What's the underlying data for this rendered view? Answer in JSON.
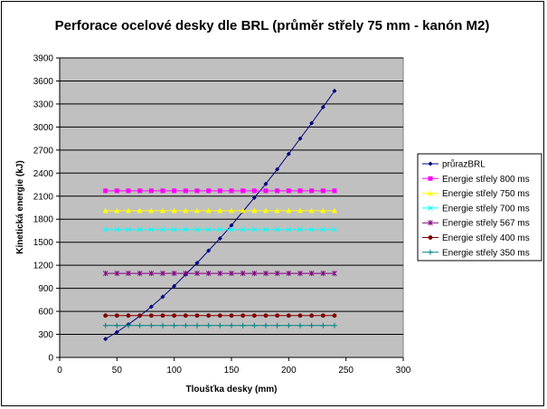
{
  "chart_data": {
    "type": "line",
    "title": "Perforace ocelové desky dle BRL (průměr střely 75 mm - kanón M2)",
    "xlabel": "Tloušťka desky (mm)",
    "ylabel": "Kinetická energie (kJ)",
    "xlim": [
      0,
      300
    ],
    "ylim": [
      0,
      3900
    ],
    "x_ticks": [
      "0",
      "50",
      "100",
      "150",
      "200",
      "250",
      "300"
    ],
    "y_ticks": [
      "0",
      "300",
      "600",
      "900",
      "1200",
      "1500",
      "1800",
      "2100",
      "2400",
      "2700",
      "3000",
      "3300",
      "3600",
      "3900"
    ],
    "grid": "horizontal major gridlines",
    "plot_background": "#c0c0c0",
    "legend_position": "right",
    "x": [
      40,
      50,
      60,
      70,
      80,
      90,
      100,
      110,
      120,
      130,
      140,
      150,
      160,
      170,
      180,
      190,
      200,
      210,
      220,
      230,
      240
    ],
    "series": [
      {
        "name": "průrazBRL",
        "color": "#000080",
        "marker": "diamond",
        "values": [
          240,
          330,
          430,
          540,
          660,
          790,
          930,
          1080,
          1230,
          1390,
          1550,
          1720,
          1900,
          2080,
          2260,
          2450,
          2650,
          2850,
          3050,
          3260,
          3470
        ]
      },
      {
        "name": "Energie střely 800 ms",
        "color": "#ff00ff",
        "marker": "square",
        "values": [
          2170,
          2170,
          2170,
          2170,
          2170,
          2170,
          2170,
          2170,
          2170,
          2170,
          2170,
          2170,
          2170,
          2170,
          2170,
          2170,
          2170,
          2170,
          2170,
          2170,
          2170
        ]
      },
      {
        "name": "Energie střely 750 ms",
        "color": "#ffff00",
        "marker": "triangle",
        "values": [
          1910,
          1910,
          1910,
          1910,
          1910,
          1910,
          1910,
          1910,
          1910,
          1910,
          1910,
          1910,
          1910,
          1910,
          1910,
          1910,
          1910,
          1910,
          1910,
          1910,
          1910
        ]
      },
      {
        "name": "Energie střely 700 ms",
        "color": "#00ffff",
        "marker": "x",
        "values": [
          1665,
          1665,
          1665,
          1665,
          1665,
          1665,
          1665,
          1665,
          1665,
          1665,
          1665,
          1665,
          1665,
          1665,
          1665,
          1665,
          1665,
          1665,
          1665,
          1665,
          1665
        ]
      },
      {
        "name": "Energie střely 567 ms",
        "color": "#800080",
        "marker": "star",
        "values": [
          1095,
          1095,
          1095,
          1095,
          1095,
          1095,
          1095,
          1095,
          1095,
          1095,
          1095,
          1095,
          1095,
          1095,
          1095,
          1095,
          1095,
          1095,
          1095,
          1095,
          1095
        ]
      },
      {
        "name": "Energie střely 400 ms",
        "color": "#800000",
        "marker": "circle",
        "values": [
          545,
          545,
          545,
          545,
          545,
          545,
          545,
          545,
          545,
          545,
          545,
          545,
          545,
          545,
          545,
          545,
          545,
          545,
          545,
          545,
          545
        ]
      },
      {
        "name": "Energie střely 350 ms",
        "color": "#008080",
        "marker": "plus",
        "values": [
          415,
          415,
          415,
          415,
          415,
          415,
          415,
          415,
          415,
          415,
          415,
          415,
          415,
          415,
          415,
          415,
          415,
          415,
          415,
          415,
          415
        ]
      }
    ]
  }
}
